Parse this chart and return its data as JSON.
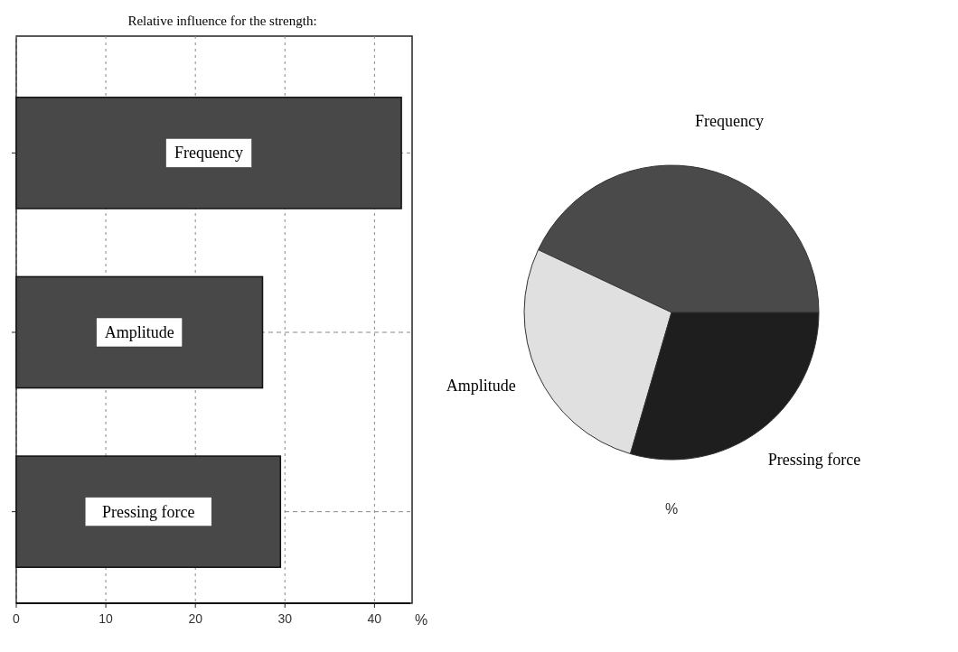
{
  "chart_data": [
    {
      "type": "bar",
      "orientation": "horizontal",
      "title": "Relative influence for the strength:",
      "xlabel": "%",
      "categories": [
        "Frequency",
        "Amplitude",
        "Pressing force"
      ],
      "values": [
        43,
        27.5,
        29.5
      ],
      "color": "#484848",
      "xlim": [
        0,
        44
      ],
      "xticks": [
        0,
        10,
        20,
        30,
        40
      ],
      "grid": true
    },
    {
      "type": "pie",
      "categories": [
        "Frequency",
        "Amplitude",
        "Pressing force"
      ],
      "values": [
        43,
        27.5,
        29.5
      ],
      "colors": [
        "#4a4a4a",
        "#e0e0e0",
        "#1e1e1e"
      ],
      "annotations": [
        "%"
      ]
    }
  ]
}
